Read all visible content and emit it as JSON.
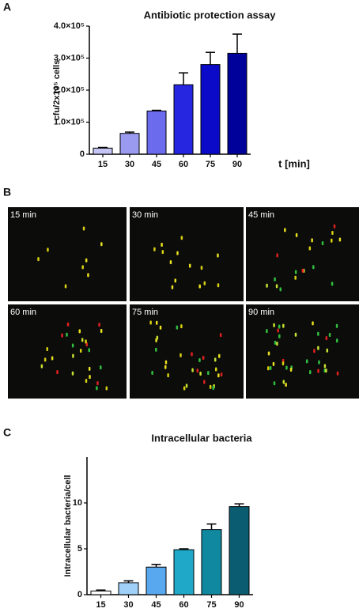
{
  "panel_letters": [
    "A",
    "B",
    "C"
  ],
  "micrograph_labels": [
    "15 min",
    "30 min",
    "45 min",
    "60 min",
    "75 min",
    "90 min"
  ],
  "chart_data": [
    {
      "type": "bar",
      "title": "Antibiotic protection assay",
      "ylabel": "cfu/2x10⁵ cells",
      "xlabel": "t [min]",
      "categories": [
        "15",
        "30",
        "45",
        "60",
        "75",
        "90"
      ],
      "values": [
        19000,
        65000,
        135000,
        217000,
        280000,
        315000
      ],
      "errors": [
        2000,
        4000,
        2000,
        37000,
        38000,
        60000
      ],
      "colors": [
        "#c5c5f5",
        "#9a9af0",
        "#6b6bee",
        "#2626e0",
        "#0a0ac8",
        "#00009a"
      ],
      "ylim": [
        0,
        400000
      ],
      "yticks": [
        0,
        {
          "value": 100000,
          "label": "1.0×10⁵"
        },
        {
          "value": 200000,
          "label": "2.0×10⁵"
        },
        {
          "value": 300000,
          "label": "3.0×10⁵"
        },
        {
          "value": 400000,
          "label": "4.0×10⁵"
        }
      ]
    },
    {
      "type": "bar",
      "title": "Intracellular bacteria",
      "ylabel": "Intracellular bacteria/cell",
      "categories": [
        "15",
        "30",
        "45",
        "60",
        "75",
        "90"
      ],
      "values": [
        0.4,
        1.3,
        3.0,
        4.9,
        7.1,
        9.6
      ],
      "errors": [
        0.1,
        0.2,
        0.3,
        0.1,
        0.6,
        0.3
      ],
      "colors": [
        "#ffffff",
        "#a0d0f8",
        "#58a8f0",
        "#20a8c8",
        "#1088a0",
        "#0a5c70"
      ],
      "ylim": [
        0,
        15
      ],
      "yticks": [
        0,
        5,
        10
      ]
    }
  ]
}
